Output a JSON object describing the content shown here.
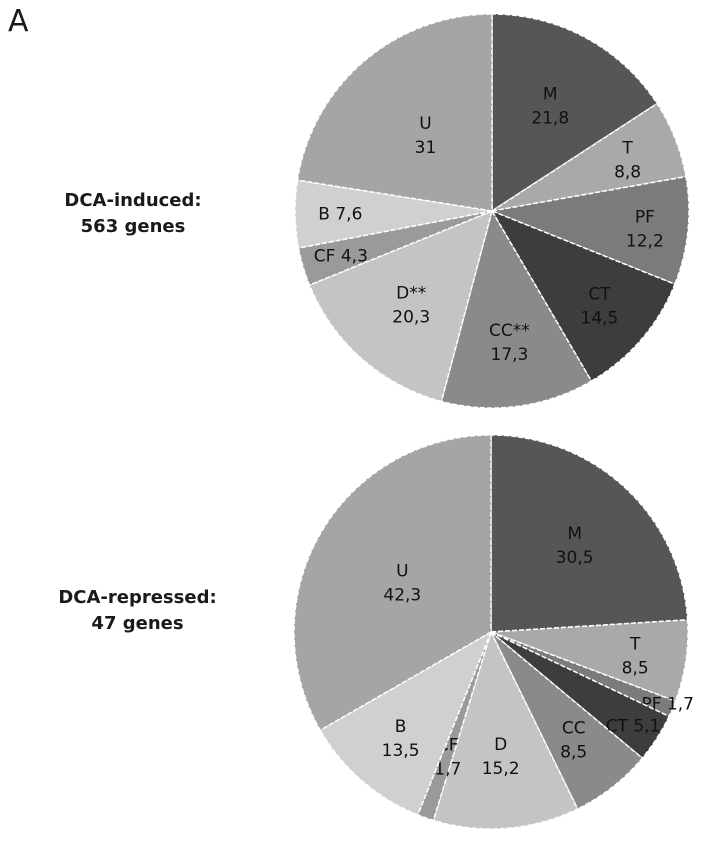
{
  "panel_label": "A",
  "colors": {
    "M": "#565656",
    "T": "#a9a9a9",
    "PF": "#7b7b7b",
    "CT": "#3d3d3d",
    "CC": "#8a8a8a",
    "D": "#c4c4c4",
    "CF": "#9a9a9a",
    "B": "#d0d0d0",
    "U": "#a5a5a5"
  },
  "chart_data": [
    {
      "type": "pie",
      "caption_line1": "DCA-induced:",
      "caption_line2": "563 genes",
      "slices": [
        {
          "category": "M",
          "value": 21.8,
          "label_name": "M",
          "label_value": "21,8"
        },
        {
          "category": "T",
          "value": 8.8,
          "label_name": "T",
          "label_value": "8,8"
        },
        {
          "category": "PF",
          "value": 12.2,
          "label_name": "PF",
          "label_value": "12,2"
        },
        {
          "category": "CT",
          "value": 14.5,
          "label_name": "CT",
          "label_value": "14,5"
        },
        {
          "category": "CC",
          "value": 17.3,
          "label_name": "CC**",
          "label_value": "17,3"
        },
        {
          "category": "D",
          "value": 20.3,
          "label_name": "D**",
          "label_value": "20,3"
        },
        {
          "category": "CF",
          "value": 4.3,
          "label_name": "CF",
          "label_value": "4,3"
        },
        {
          "category": "B",
          "value": 7.6,
          "label_name": "B",
          "label_value": "7,6"
        },
        {
          "category": "U",
          "value": 31,
          "label_name": "U",
          "label_value": "31"
        }
      ]
    },
    {
      "type": "pie",
      "caption_line1": "DCA-repressed:",
      "caption_line2": "47 genes",
      "slices": [
        {
          "category": "M",
          "value": 30.5,
          "label_name": "M",
          "label_value": "30,5"
        },
        {
          "category": "T",
          "value": 8.5,
          "label_name": "T",
          "label_value": "8,5"
        },
        {
          "category": "PF",
          "value": 1.7,
          "label_name": "PF",
          "label_value": "1,7"
        },
        {
          "category": "CT",
          "value": 5.1,
          "label_name": "CT",
          "label_value": "5,1"
        },
        {
          "category": "CC",
          "value": 8.5,
          "label_name": "CC",
          "label_value": "8,5"
        },
        {
          "category": "D",
          "value": 15.2,
          "label_name": "D",
          "label_value": "15,2"
        },
        {
          "category": "CF",
          "value": 1.7,
          "label_name": "CF",
          "label_value": "1,7"
        },
        {
          "category": "B",
          "value": 13.5,
          "label_name": "B",
          "label_value": "13,5"
        },
        {
          "category": "U",
          "value": 42.3,
          "label_name": "U",
          "label_value": "42,3"
        }
      ]
    }
  ]
}
